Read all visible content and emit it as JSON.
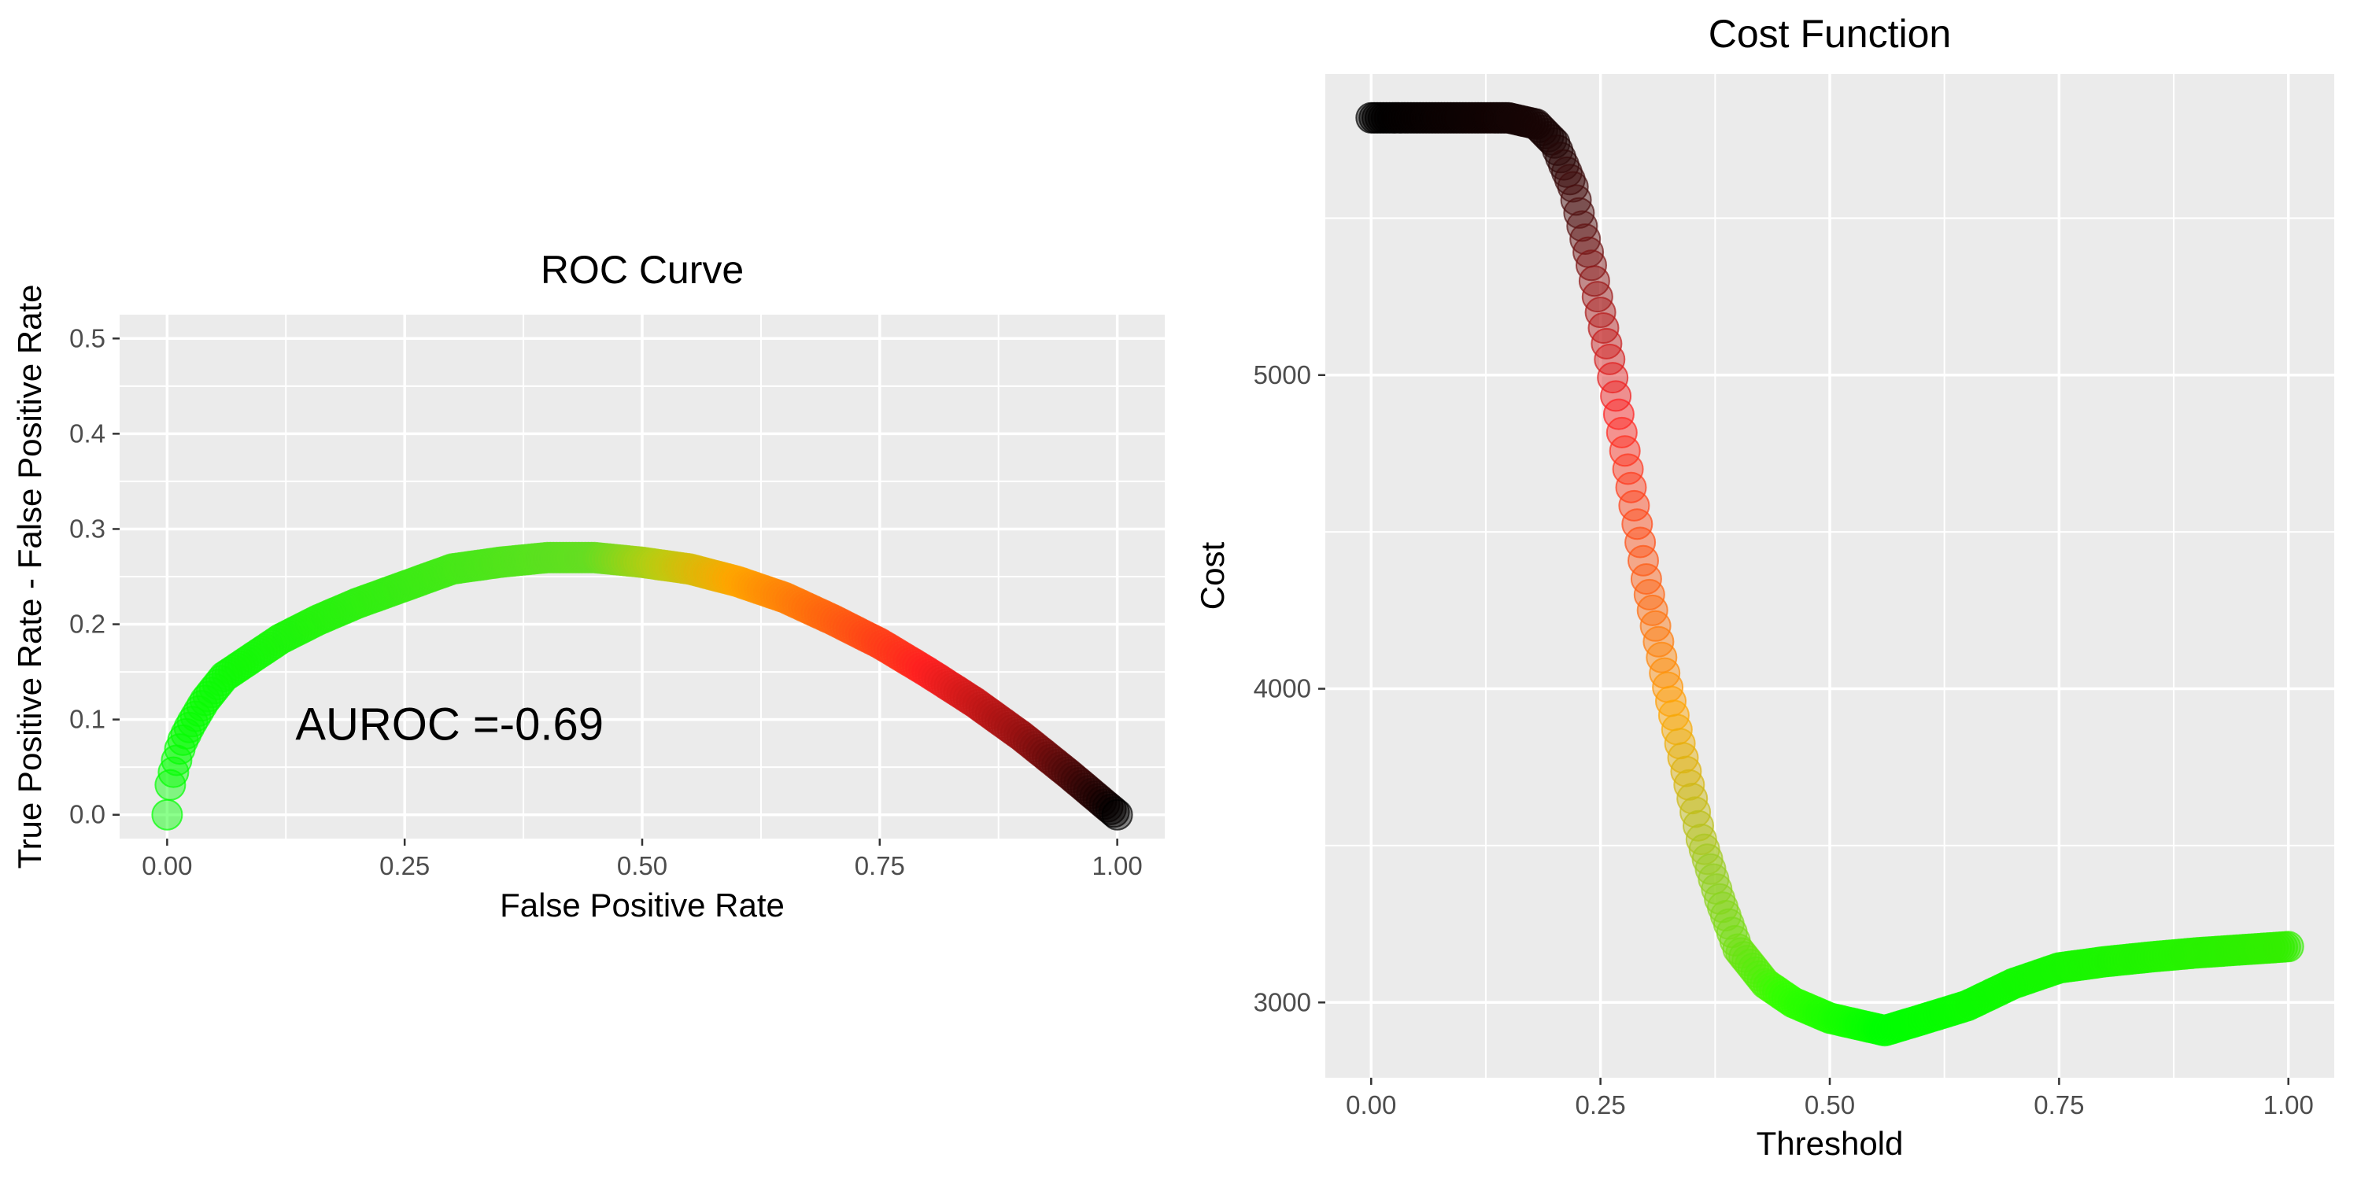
{
  "chart_data": [
    {
      "type": "scatter",
      "title": "ROC Curve",
      "xlabel": "False Positive Rate",
      "ylabel": "True Positive Rate - False Positive Rate",
      "xlim": [
        -0.05,
        1.05
      ],
      "ylim": [
        -0.025,
        0.525
      ],
      "x_ticks": [
        0,
        0.25,
        0.5,
        0.75,
        1
      ],
      "x_tick_labels": [
        "0.00",
        "0.25",
        "0.50",
        "0.75",
        "1.00"
      ],
      "y_ticks": [
        0,
        0.1,
        0.2,
        0.3,
        0.4,
        0.5
      ],
      "y_tick_labels": [
        "0.0",
        "0.1",
        "0.2",
        "0.3",
        "0.4",
        "0.5"
      ],
      "annotation": {
        "text": "AUROC =-0.69",
        "x": 0.135,
        "y": 0.095
      },
      "grid": true,
      "background": "#ebebeb",
      "point_colors": [
        "#00ff00",
        "#ffa500",
        "#ff0000",
        "#000000"
      ],
      "curve": [
        {
          "x": 0.0,
          "y": 0.0
        },
        {
          "x": 0.003,
          "y": 0.03
        },
        {
          "x": 0.008,
          "y": 0.05
        },
        {
          "x": 0.015,
          "y": 0.075
        },
        {
          "x": 0.025,
          "y": 0.095
        },
        {
          "x": 0.04,
          "y": 0.12
        },
        {
          "x": 0.06,
          "y": 0.145
        },
        {
          "x": 0.09,
          "y": 0.165
        },
        {
          "x": 0.12,
          "y": 0.185
        },
        {
          "x": 0.16,
          "y": 0.205
        },
        {
          "x": 0.2,
          "y": 0.222
        },
        {
          "x": 0.25,
          "y": 0.24
        },
        {
          "x": 0.3,
          "y": 0.258
        },
        {
          "x": 0.35,
          "y": 0.265
        },
        {
          "x": 0.4,
          "y": 0.27
        },
        {
          "x": 0.45,
          "y": 0.27
        },
        {
          "x": 0.5,
          "y": 0.265
        },
        {
          "x": 0.55,
          "y": 0.258
        },
        {
          "x": 0.6,
          "y": 0.245
        },
        {
          "x": 0.65,
          "y": 0.228
        },
        {
          "x": 0.7,
          "y": 0.205
        },
        {
          "x": 0.75,
          "y": 0.18
        },
        {
          "x": 0.8,
          "y": 0.15
        },
        {
          "x": 0.85,
          "y": 0.118
        },
        {
          "x": 0.9,
          "y": 0.082
        },
        {
          "x": 0.95,
          "y": 0.042
        },
        {
          "x": 1.0,
          "y": 0.0
        }
      ],
      "color_stops": [
        {
          "x": 0.0,
          "color": "#00ff00"
        },
        {
          "x": 0.45,
          "color": "#66dd22"
        },
        {
          "x": 0.52,
          "color": "#bbcc11"
        },
        {
          "x": 0.6,
          "color": "#ffa500"
        },
        {
          "x": 0.8,
          "color": "#ff2020"
        },
        {
          "x": 0.9,
          "color": "#991111"
        },
        {
          "x": 1.0,
          "color": "#000000"
        }
      ]
    },
    {
      "type": "scatter",
      "title": "Cost Function",
      "xlabel": "Threshold",
      "ylabel": "Cost",
      "xlim": [
        -0.05,
        1.05
      ],
      "ylim": [
        2760,
        5960
      ],
      "x_ticks": [
        0,
        0.25,
        0.5,
        0.75,
        1
      ],
      "x_tick_labels": [
        "0.00",
        "0.25",
        "0.50",
        "0.75",
        "1.00"
      ],
      "y_ticks": [
        3000,
        4000,
        5000
      ],
      "y_tick_labels": [
        "3000",
        "4000",
        "5000"
      ],
      "grid": true,
      "background": "#ebebeb",
      "point_colors": [
        "#000000",
        "#ff0000",
        "#ffa500",
        "#00ff00"
      ],
      "curve": [
        {
          "x": 0.0,
          "y": 5820
        },
        {
          "x": 0.15,
          "y": 5820
        },
        {
          "x": 0.18,
          "y": 5800
        },
        {
          "x": 0.2,
          "y": 5740
        },
        {
          "x": 0.22,
          "y": 5600
        },
        {
          "x": 0.24,
          "y": 5350
        },
        {
          "x": 0.26,
          "y": 5050
        },
        {
          "x": 0.28,
          "y": 4700
        },
        {
          "x": 0.3,
          "y": 4350
        },
        {
          "x": 0.32,
          "y": 4050
        },
        {
          "x": 0.34,
          "y": 3780
        },
        {
          "x": 0.36,
          "y": 3520
        },
        {
          "x": 0.38,
          "y": 3330
        },
        {
          "x": 0.4,
          "y": 3170
        },
        {
          "x": 0.43,
          "y": 3060
        },
        {
          "x": 0.46,
          "y": 3000
        },
        {
          "x": 0.5,
          "y": 2950
        },
        {
          "x": 0.56,
          "y": 2910
        },
        {
          "x": 0.6,
          "y": 2945
        },
        {
          "x": 0.65,
          "y": 2990
        },
        {
          "x": 0.7,
          "y": 3060
        },
        {
          "x": 0.75,
          "y": 3110
        },
        {
          "x": 0.8,
          "y": 3130
        },
        {
          "x": 0.85,
          "y": 3145
        },
        {
          "x": 0.9,
          "y": 3158
        },
        {
          "x": 0.95,
          "y": 3168
        },
        {
          "x": 1.0,
          "y": 3178
        }
      ],
      "color_stops": [
        {
          "x": 0.0,
          "color": "#000000"
        },
        {
          "x": 0.2,
          "color": "#1a0505"
        },
        {
          "x": 0.23,
          "color": "#551111"
        },
        {
          "x": 0.27,
          "color": "#ff2020"
        },
        {
          "x": 0.3,
          "color": "#ff5a10"
        },
        {
          "x": 0.33,
          "color": "#ffa500"
        },
        {
          "x": 0.37,
          "color": "#99cc22"
        },
        {
          "x": 0.45,
          "color": "#33ff00"
        },
        {
          "x": 0.56,
          "color": "#00ff00"
        },
        {
          "x": 1.0,
          "color": "#33ee00"
        }
      ]
    }
  ]
}
